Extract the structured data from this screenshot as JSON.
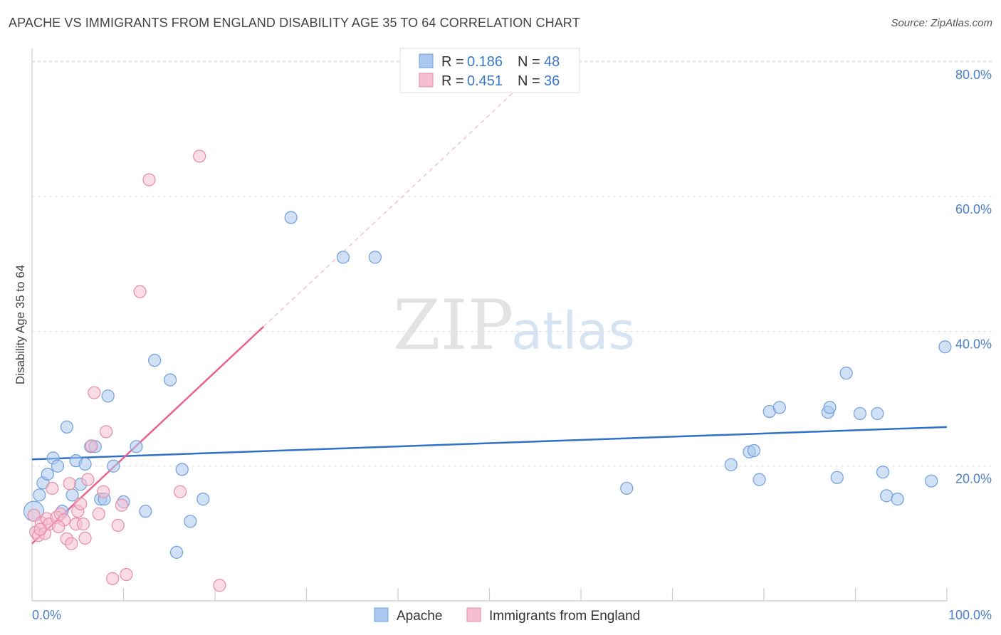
{
  "header": {
    "title": "APACHE VS IMMIGRANTS FROM ENGLAND DISABILITY AGE 35 TO 64 CORRELATION CHART",
    "source": "Source: ZipAtlas.com"
  },
  "watermark": {
    "zip": "ZIP",
    "atlas": "atlas"
  },
  "legend": {
    "rows": [
      {
        "r_label": "R = ",
        "r_value": "0.186",
        "n_label": "N = ",
        "n_value": "48",
        "color": "#a9c8ef",
        "stroke": "#6f9fdc"
      },
      {
        "r_label": "R = ",
        "r_value": "0.451",
        "n_label": "N = ",
        "n_value": "36",
        "color": "#f5bfd0",
        "stroke": "#e98aa7"
      }
    ]
  },
  "colors": {
    "apache_fill": "#a9c8ef",
    "apache_stroke": "#6f9fdc",
    "apache_line": "#2f72c8",
    "england_fill": "#f5bfd0",
    "england_stroke": "#e98aa7",
    "england_line": "#e8628d"
  },
  "chart_data": {
    "type": "scatter",
    "title": "APACHE VS IMMIGRANTS FROM ENGLAND DISABILITY AGE 35 TO 64 CORRELATION CHART",
    "xlabel": "",
    "ylabel": "Disability Age 35 to 64",
    "xlim": [
      0,
      100
    ],
    "ylim": [
      0,
      82
    ],
    "x_ticks": [
      "0.0%",
      "100.0%"
    ],
    "y_ticks": [
      {
        "value": 20,
        "label": "20.0%"
      },
      {
        "value": 40,
        "label": "40.0%"
      },
      {
        "value": 60,
        "label": "60.0%"
      },
      {
        "value": 80,
        "label": "80.0%"
      }
    ],
    "grid": true,
    "legend_position": "top-center",
    "series": [
      {
        "name": "Apache",
        "r": 0.186,
        "n": 48,
        "trend": {
          "x": [
            0,
            100
          ],
          "y": [
            21.0,
            25.8
          ]
        },
        "points": [
          [
            0.2,
            13.3
          ],
          [
            0.8,
            15.7
          ],
          [
            1.2,
            17.5
          ],
          [
            1.7,
            18.8
          ],
          [
            2.3,
            21.2
          ],
          [
            2.8,
            20.0
          ],
          [
            3.3,
            13.3
          ],
          [
            3.8,
            25.8
          ],
          [
            4.4,
            15.7
          ],
          [
            4.8,
            20.8
          ],
          [
            5.3,
            17.3
          ],
          [
            5.8,
            20.3
          ],
          [
            6.4,
            22.9
          ],
          [
            6.9,
            22.9
          ],
          [
            7.5,
            15.1
          ],
          [
            7.9,
            15.1
          ],
          [
            8.3,
            30.4
          ],
          [
            8.9,
            20.0
          ],
          [
            10.0,
            14.7
          ],
          [
            11.4,
            22.9
          ],
          [
            12.4,
            13.3
          ],
          [
            13.4,
            35.7
          ],
          [
            15.1,
            32.8
          ],
          [
            15.8,
            7.2
          ],
          [
            16.4,
            19.5
          ],
          [
            17.3,
            11.8
          ],
          [
            18.7,
            15.1
          ],
          [
            28.3,
            56.9
          ],
          [
            34.0,
            51.0
          ],
          [
            37.5,
            51.0
          ],
          [
            65.0,
            16.7
          ],
          [
            76.4,
            20.2
          ],
          [
            78.4,
            22.1
          ],
          [
            78.9,
            22.3
          ],
          [
            79.5,
            18.0
          ],
          [
            80.6,
            28.1
          ],
          [
            81.7,
            28.7
          ],
          [
            87.0,
            28.0
          ],
          [
            87.2,
            28.7
          ],
          [
            88.0,
            18.3
          ],
          [
            89.0,
            33.8
          ],
          [
            90.5,
            27.8
          ],
          [
            92.4,
            27.8
          ],
          [
            93.0,
            19.1
          ],
          [
            93.4,
            15.6
          ],
          [
            94.6,
            15.1
          ],
          [
            98.3,
            17.8
          ],
          [
            99.8,
            37.7
          ]
        ]
      },
      {
        "name": "Immigrants from England",
        "r": 0.451,
        "n": 36,
        "trend": {
          "x": [
            0,
            25.3
          ],
          "y": [
            8.5,
            40.7
          ]
        },
        "trend_extension": {
          "x": [
            25.3,
            54.6
          ],
          "y": [
            40.7,
            78.0
          ]
        },
        "points": [
          [
            0.2,
            12.7
          ],
          [
            0.4,
            10.2
          ],
          [
            0.7,
            9.7
          ],
          [
            1.0,
            11.6
          ],
          [
            1.4,
            10.0
          ],
          [
            1.6,
            12.2
          ],
          [
            1.9,
            11.4
          ],
          [
            2.2,
            16.7
          ],
          [
            2.7,
            12.4
          ],
          [
            3.1,
            12.9
          ],
          [
            3.5,
            12.0
          ],
          [
            3.8,
            9.2
          ],
          [
            4.1,
            17.4
          ],
          [
            4.3,
            8.5
          ],
          [
            4.8,
            11.4
          ],
          [
            5.0,
            13.3
          ],
          [
            5.3,
            14.4
          ],
          [
            5.6,
            11.4
          ],
          [
            5.8,
            9.3
          ],
          [
            6.1,
            18.0
          ],
          [
            6.5,
            23.0
          ],
          [
            6.8,
            30.9
          ],
          [
            7.3,
            12.9
          ],
          [
            7.8,
            16.2
          ],
          [
            8.1,
            25.1
          ],
          [
            8.8,
            3.3
          ],
          [
            9.4,
            11.2
          ],
          [
            9.8,
            14.2
          ],
          [
            10.3,
            3.9
          ],
          [
            11.8,
            45.9
          ],
          [
            12.8,
            62.5
          ],
          [
            16.2,
            16.2
          ],
          [
            18.3,
            66.0
          ],
          [
            20.5,
            2.3
          ],
          [
            2.9,
            11.0
          ],
          [
            0.9,
            10.6
          ]
        ]
      }
    ]
  }
}
